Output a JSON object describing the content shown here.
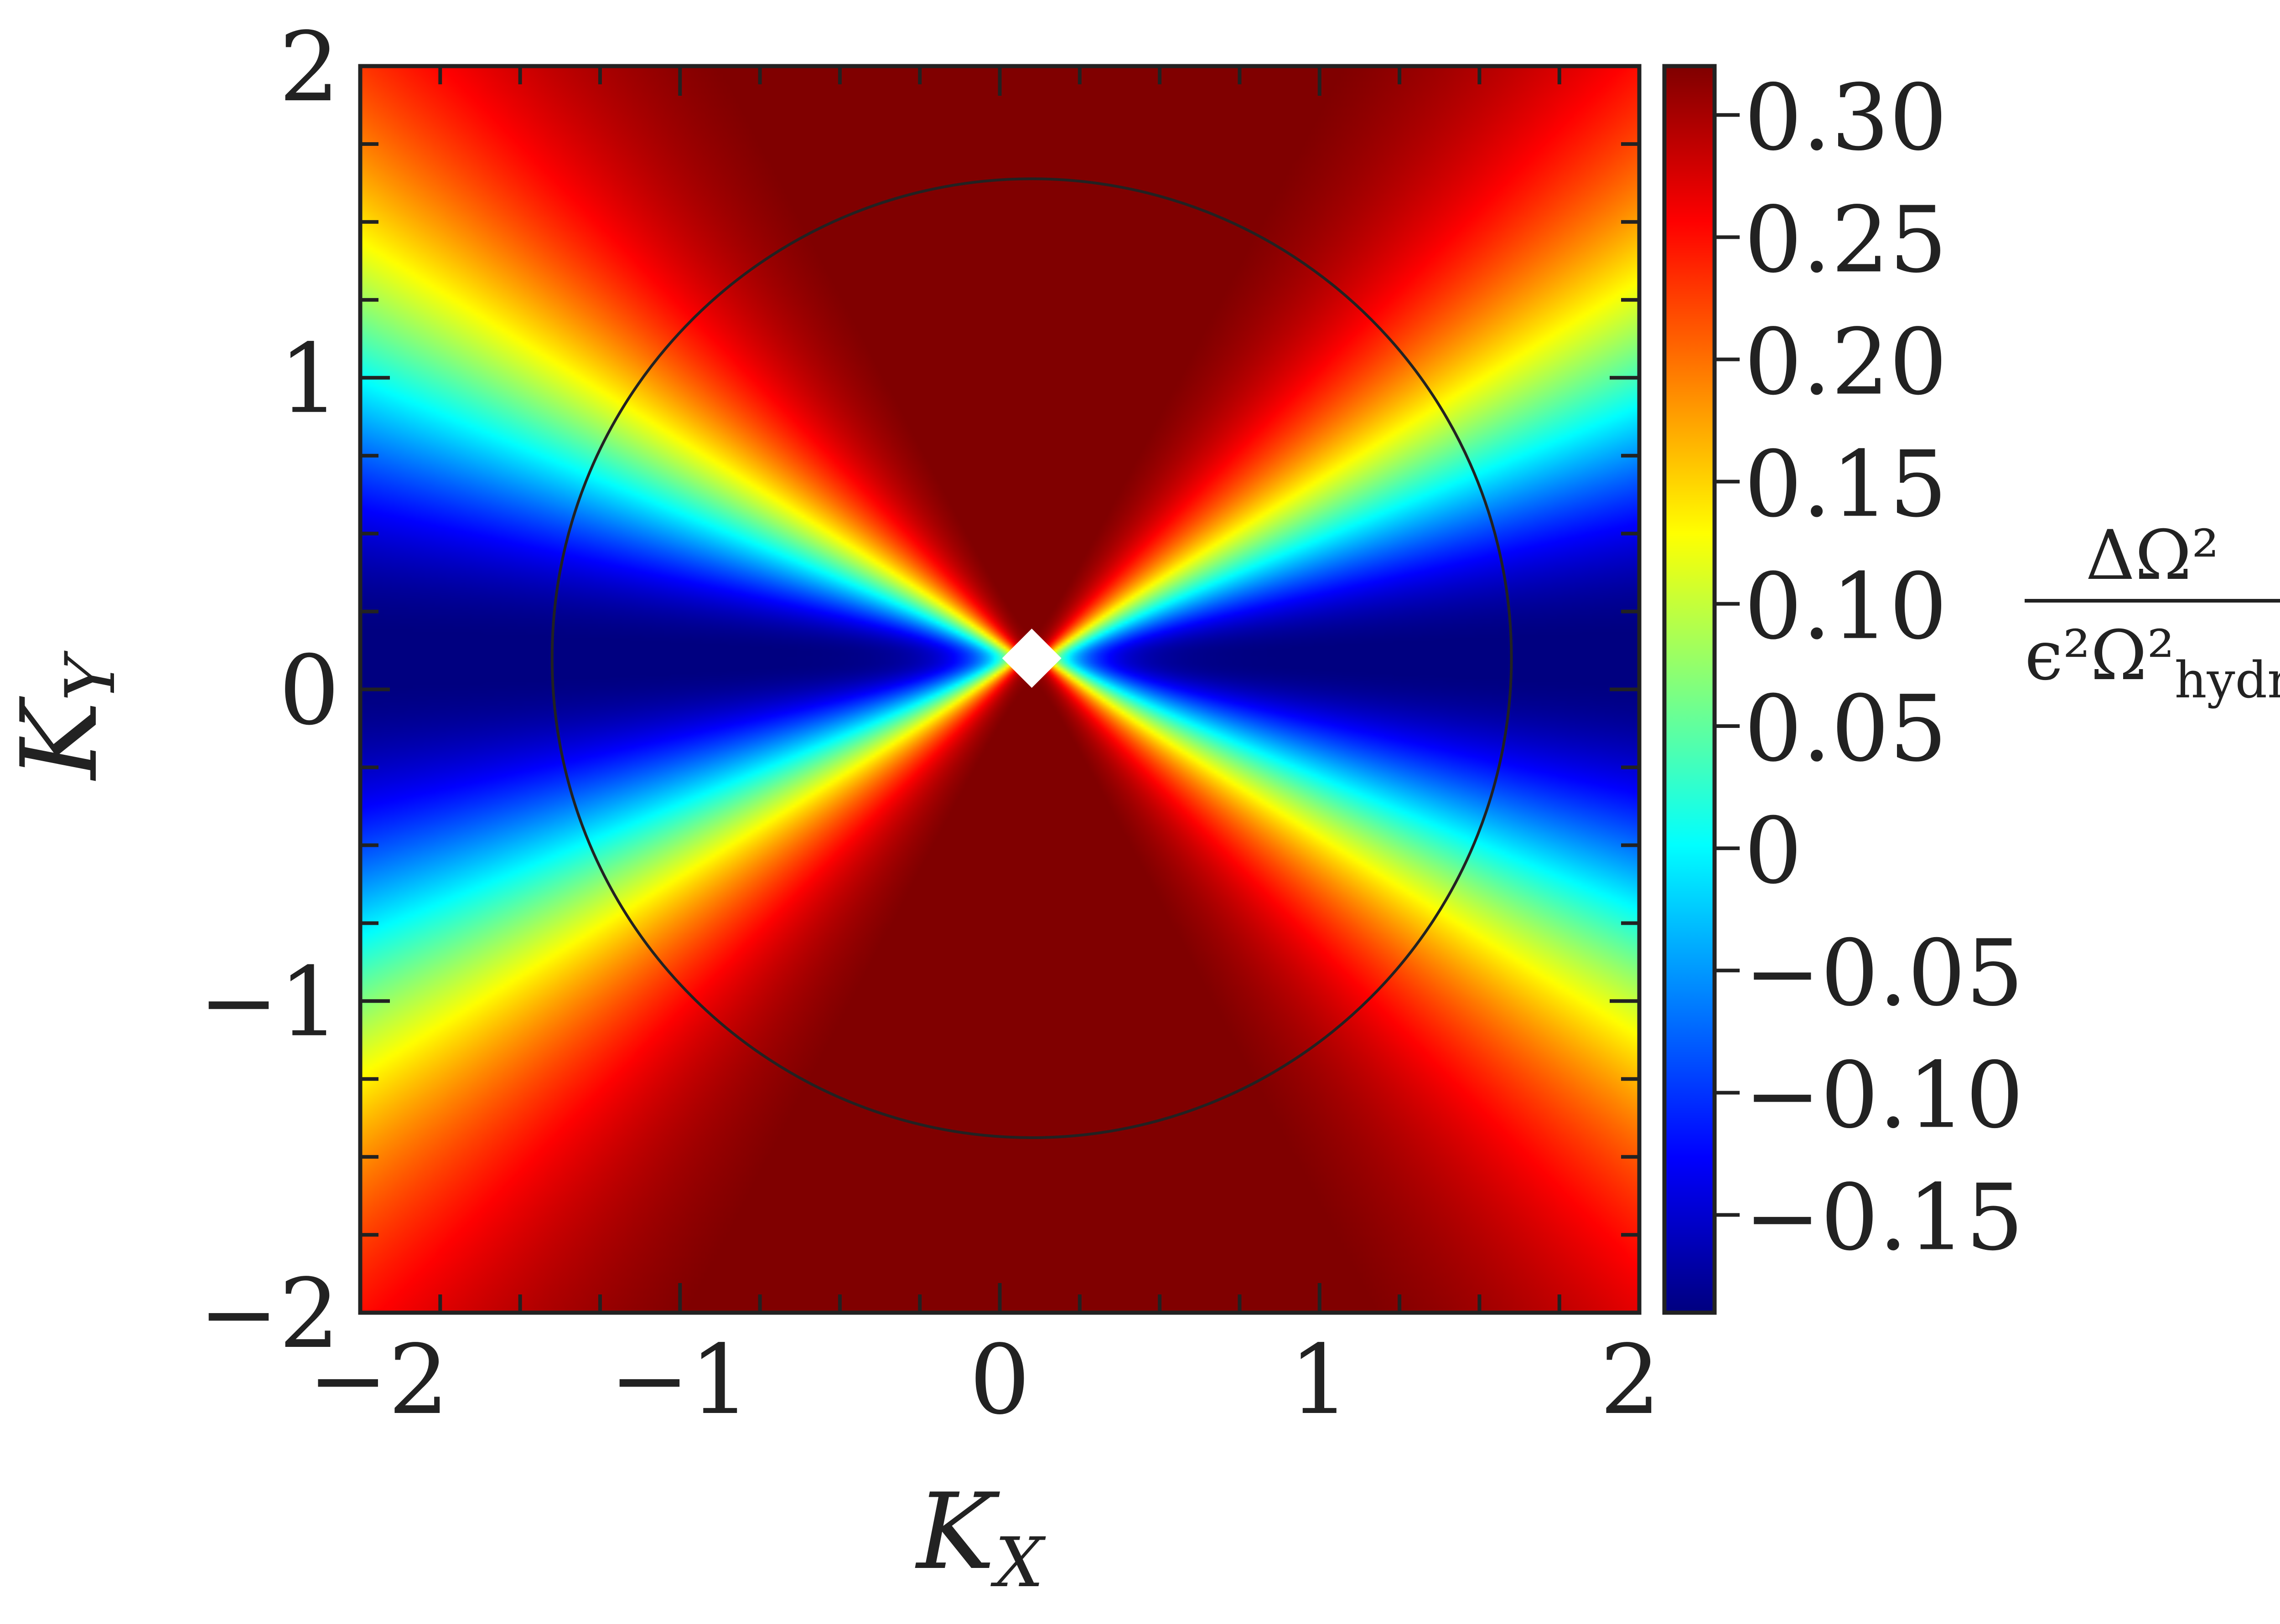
{
  "chart_data": {
    "type": "heatmap",
    "title": "",
    "xlabel": {
      "main": "K",
      "sub": "X"
    },
    "ylabel": {
      "main": "K",
      "sub": "Y"
    },
    "xlim": [
      -2,
      2
    ],
    "ylim": [
      -2,
      2
    ],
    "x_ticks": [
      -2,
      -1,
      0,
      1,
      2
    ],
    "y_ticks": [
      -2,
      -1,
      0,
      1,
      2
    ],
    "x_tick_labels": [
      "−2",
      "−1",
      "0",
      "1",
      "2"
    ],
    "y_tick_labels": [
      "−2",
      "−1",
      "0",
      "1",
      "2"
    ],
    "minor_tick_step": 0.25,
    "field": {
      "description_of_pattern": "bow-tie shaped minimum along K_Y = 0.08 axis opening from point (0.1, 0.1)",
      "center": [
        0.1,
        0.1
      ],
      "value_along_vertical": 0.32,
      "value_along_horizontal": -0.19
    },
    "circle": {
      "center": [
        0.1,
        0.1
      ],
      "radius": 1.5,
      "color": "#222222"
    },
    "marker": {
      "shape": "diamond",
      "position": [
        0.1,
        0.1
      ],
      "color": "#ffffff"
    },
    "colorbar": {
      "min": -0.19,
      "max": 0.32,
      "ticks": [
        0.3,
        0.25,
        0.2,
        0.15,
        0.1,
        0.05,
        0,
        -0.05,
        -0.1,
        -0.15
      ],
      "tick_labels": [
        "0.30",
        "0.25",
        "0.20",
        "0.15",
        "0.10",
        "0.05",
        "0",
        "−0.05",
        "−0.10",
        "−0.15"
      ],
      "colormap": "jet",
      "label": {
        "numerator": "ΔΩ²",
        "denominator_main": "ϵ²Ω²",
        "denominator_sub": "hydro"
      }
    },
    "colors": {
      "jet_stops": [
        "#00007f",
        "#0000ff",
        "#007fff",
        "#00ffff",
        "#7fff7f",
        "#ffff00",
        "#ff7f00",
        "#ff0000",
        "#7f0000"
      ],
      "frame": "#222222"
    }
  }
}
